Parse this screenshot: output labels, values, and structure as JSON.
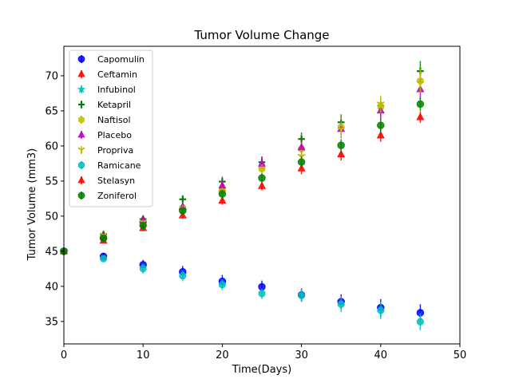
{
  "chart_data": {
    "type": "scatter",
    "title": "Tumor Volume Change",
    "xlabel": "Time(Days)",
    "ylabel": "Tumor Volume (mm3)",
    "xlim": [
      0,
      50
    ],
    "ylim": [
      31.8,
      74.2
    ],
    "xticks": [
      0,
      10,
      20,
      30,
      40,
      50
    ],
    "yticks": [
      35,
      40,
      45,
      50,
      55,
      60,
      65,
      70
    ],
    "grid": false,
    "legend_position": "upper-left",
    "x": [
      0,
      5,
      10,
      15,
      20,
      25,
      30,
      35,
      40,
      45
    ],
    "series": [
      {
        "name": "Capomulin",
        "marker": "circle",
        "color": "#0000ff",
        "values": [
          45.0,
          44.27,
          43.08,
          42.06,
          40.72,
          39.94,
          38.77,
          37.82,
          36.96,
          36.24
        ],
        "errors": [
          0.0,
          0.45,
          0.7,
          0.84,
          0.91,
          0.88,
          0.93,
          1.05,
          1.22,
          1.22
        ]
      },
      {
        "name": "Ceftamin",
        "marker": "triangle-up",
        "color": "#ff0000",
        "values": [
          45.0,
          47.36,
          49.58,
          51.3,
          54.0,
          null,
          null,
          null,
          null,
          null
        ],
        "errors": [
          0.0,
          0.16,
          0.24,
          0.34,
          0.36,
          null,
          null,
          null,
          null,
          null
        ]
      },
      {
        "name": "Infubinol",
        "marker": "star",
        "color": "#00bfbf",
        "values": [
          45.0,
          null,
          null,
          null,
          null,
          null,
          null,
          null,
          null,
          null
        ],
        "errors": [
          0.0,
          null,
          null,
          null,
          null,
          null,
          null,
          null,
          null,
          null
        ]
      },
      {
        "name": "Ketapril",
        "marker": "plus",
        "color": "#008000",
        "values": [
          45.0,
          47.39,
          49.58,
          52.4,
          54.92,
          57.68,
          60.99,
          63.37,
          65.75,
          70.66
        ],
        "errors": [
          0.0,
          0.26,
          0.36,
          0.58,
          0.73,
          0.76,
          0.93,
          1.13,
          1.16,
          1.45
        ]
      },
      {
        "name": "Naftisol",
        "marker": "hexagon",
        "color": "#bfbf00",
        "values": [
          45.0,
          46.8,
          48.69,
          50.93,
          53.64,
          56.73,
          59.56,
          62.69,
          65.6,
          69.27
        ],
        "errors": [
          0.0,
          0.2,
          0.38,
          0.6,
          0.8,
          0.88,
          1.0,
          1.3,
          1.5,
          1.7
        ]
      },
      {
        "name": "Placebo",
        "marker": "triangle-up",
        "color": "#bf00bf",
        "values": [
          45.0,
          47.13,
          49.42,
          51.36,
          54.36,
          57.48,
          59.81,
          62.42,
          65.05,
          68.08
        ],
        "errors": [
          0.0,
          0.22,
          0.4,
          0.61,
          0.84,
          1.03,
          1.22,
          1.29,
          1.4,
          1.5
        ]
      },
      {
        "name": "Propriva",
        "marker": "tri-down",
        "color": "#bfbf00",
        "values": [
          45.0,
          47.25,
          49.1,
          51.07,
          53.35,
          56.57,
          58.47,
          62.33,
          65.92,
          68.9
        ],
        "errors": [
          0.0,
          0.22,
          0.38,
          0.55,
          0.74,
          0.78,
          1.0,
          1.1,
          1.2,
          1.3
        ]
      },
      {
        "name": "Ramicane",
        "marker": "octagon",
        "color": "#00bfbf",
        "values": [
          45.0,
          43.94,
          42.53,
          41.5,
          40.24,
          38.97,
          38.7,
          37.45,
          36.57,
          34.96
        ],
        "errors": [
          0.0,
          0.48,
          0.72,
          0.77,
          0.79,
          0.75,
          0.93,
          1.13,
          1.22,
          1.23
        ]
      },
      {
        "name": "Stelasyn",
        "marker": "triangle-up",
        "color": "#ff0000",
        "values": [
          45.0,
          46.5,
          48.3,
          50.1,
          52.2,
          54.3,
          56.8,
          58.8,
          61.5,
          64.1
        ],
        "errors": [
          0.0,
          0.24,
          0.33,
          0.47,
          0.59,
          0.63,
          0.84,
          0.87,
          0.9,
          0.8
        ]
      },
      {
        "name": "Zoniferol",
        "marker": "circle",
        "color": "#008000",
        "values": [
          45.0,
          46.85,
          48.69,
          50.78,
          53.17,
          55.43,
          57.71,
          60.09,
          62.92,
          65.96
        ],
        "errors": [
          0.0,
          0.19,
          0.27,
          0.36,
          0.53,
          0.6,
          0.8,
          0.88,
          1.0,
          1.0
        ]
      }
    ]
  }
}
